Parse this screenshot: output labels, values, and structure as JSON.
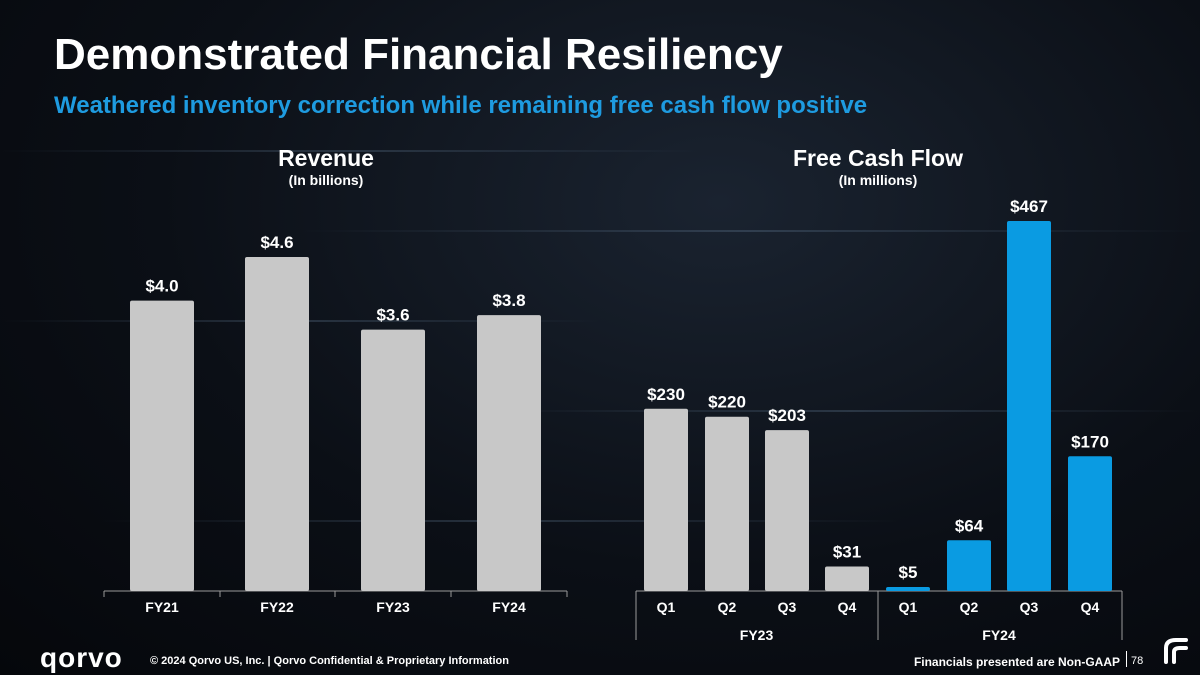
{
  "header": {
    "title": "Demonstrated Financial Resiliency",
    "subtitle": "Weathered inventory correction while remaining free cash flow positive"
  },
  "colors": {
    "gray_bar": "#c8c8c8",
    "blue_bar": "#0a9be2",
    "accent": "#1e9be0",
    "axis": "#9a9a9a"
  },
  "chart_data": [
    {
      "type": "bar",
      "title": "Revenue",
      "subtitle": "(In billions)",
      "categories": [
        "FY21",
        "FY22",
        "FY23",
        "FY24"
      ],
      "values": [
        4.0,
        4.6,
        3.6,
        3.8
      ],
      "data_labels": [
        "$4.0",
        "$4.6",
        "$3.6",
        "$3.8"
      ],
      "ylim": [
        0,
        4.6
      ]
    },
    {
      "type": "bar",
      "title": "Free Cash Flow",
      "subtitle": "(In millions)",
      "groups": [
        {
          "label": "FY23",
          "color": "gray",
          "categories": [
            "Q1",
            "Q2",
            "Q3",
            "Q4"
          ],
          "values": [
            230,
            220,
            203,
            31
          ],
          "data_labels": [
            "$230",
            "$220",
            "$203",
            "$31"
          ]
        },
        {
          "label": "FY24",
          "color": "blue",
          "categories": [
            "Q1",
            "Q2",
            "Q3",
            "Q4"
          ],
          "values": [
            5,
            64,
            467,
            170
          ],
          "data_labels": [
            "$5",
            "$64",
            "$467",
            "$170"
          ]
        }
      ],
      "ylim": [
        0,
        467
      ]
    }
  ],
  "footer": {
    "logo": "qorvo",
    "copyright": "© 2024 Qorvo US, Inc. | Qorvo Confidential & Proprietary Information",
    "note": "Financials presented are Non-GAAP",
    "page": "78"
  }
}
